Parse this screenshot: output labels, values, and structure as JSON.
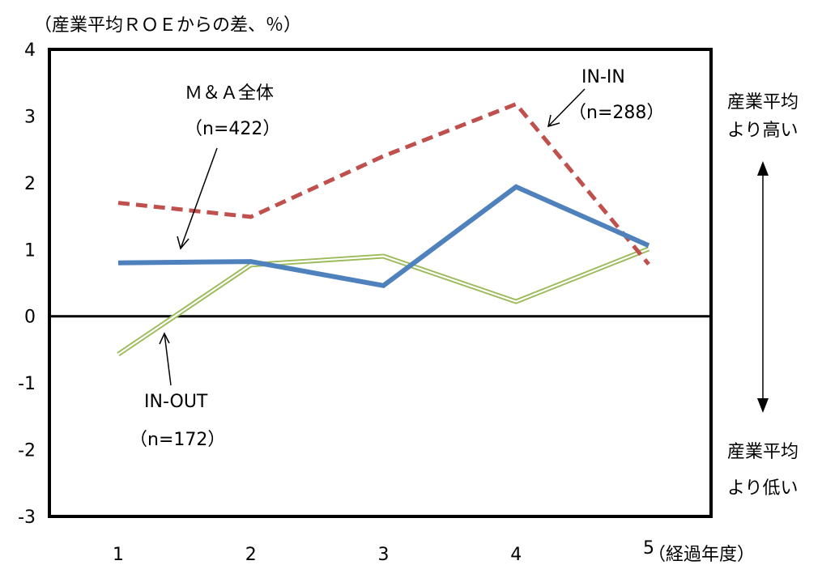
{
  "chart_data": {
    "type": "line",
    "title": "",
    "ylabel": "（産業平均ＲＯＥからの差、％）",
    "xlabel": "（経過年度）",
    "x": [
      1,
      2,
      3,
      4,
      5
    ],
    "ylim": [
      -3,
      4
    ],
    "yticks": [
      4,
      3,
      2,
      1,
      0,
      -1,
      -2,
      -3
    ],
    "grid": false,
    "legend": "none",
    "series": [
      {
        "label_lines": [
          "Ｍ＆Ａ全体",
          "（n=422）"
        ],
        "values": [
          0.8,
          0.82,
          0.46,
          1.94,
          1.06
        ],
        "color": "#4f81bd",
        "style": "solid"
      },
      {
        "label_lines": [
          "IN-IN",
          "（n=288）"
        ],
        "values": [
          1.7,
          1.49,
          2.4,
          3.18,
          0.78
        ],
        "color": "#c0504d",
        "style": "dashed"
      },
      {
        "label_lines": [
          "IN-OUT",
          "（n=172）"
        ],
        "values": [
          -0.57,
          0.77,
          0.9,
          0.22,
          1.01
        ],
        "color": "#9bbb59",
        "style": "double"
      }
    ],
    "side_annotations": {
      "higher": [
        "産業平均",
        "より高い"
      ],
      "lower": [
        "産業平均",
        "より低い"
      ]
    }
  }
}
